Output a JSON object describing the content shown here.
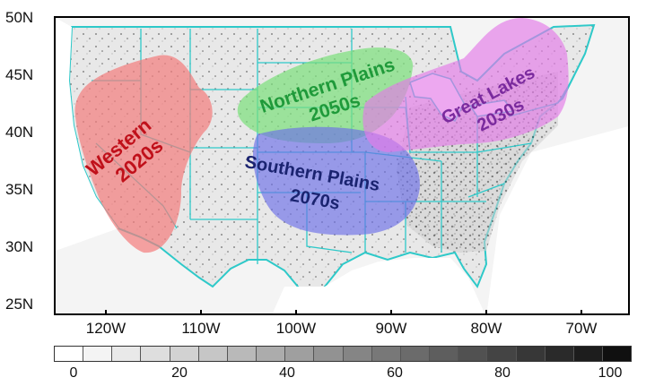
{
  "map": {
    "lat_labels": [
      "50N",
      "45N",
      "40N",
      "35N",
      "30N",
      "25N"
    ],
    "lon_labels": [
      "120W",
      "110W",
      "100W",
      "90W",
      "80W",
      "70W"
    ],
    "colorbar": {
      "labels": [
        "0",
        "20",
        "40",
        "60",
        "80",
        "100"
      ],
      "range": [
        0,
        100
      ],
      "colors": [
        "#ffffff",
        "#f4f4f4",
        "#e9e9e9",
        "#dedede",
        "#d2d2d2",
        "#c6c6c6",
        "#b9b9b9",
        "#acacac",
        "#9f9f9f",
        "#929292",
        "#858585",
        "#787878",
        "#6b6b6b",
        "#5e5e5e",
        "#515151",
        "#444444",
        "#373737",
        "#2a2a2a",
        "#1d1d1d",
        "#101010"
      ]
    },
    "boundary_color": "#2ec9c9",
    "regions": [
      {
        "name": "Western",
        "period": "2020s",
        "fill": "#f47c7c",
        "text_color": "#c0101a"
      },
      {
        "name": "Northern Plains",
        "period": "2050s",
        "fill": "#7be07b",
        "text_color": "#1f9a3a"
      },
      {
        "name": "Southern Plains",
        "period": "2070s",
        "fill": "#6b6ee8",
        "text_color": "#1a2370"
      },
      {
        "name": "Great Lakes",
        "period": "2030s",
        "fill": "#e47ae8",
        "text_color": "#7a2a9e"
      }
    ]
  }
}
